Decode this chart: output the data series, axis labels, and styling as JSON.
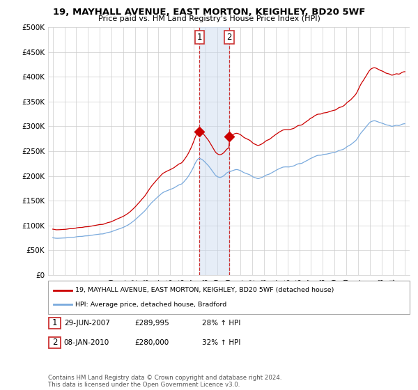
{
  "title": "19, MAYHALL AVENUE, EAST MORTON, KEIGHLEY, BD20 5WF",
  "subtitle": "Price paid vs. HM Land Registry's House Price Index (HPI)",
  "ylim": [
    0,
    500000
  ],
  "yticks": [
    0,
    50000,
    100000,
    150000,
    200000,
    250000,
    300000,
    350000,
    400000,
    450000,
    500000
  ],
  "ytick_labels": [
    "£0",
    "£50K",
    "£100K",
    "£150K",
    "£200K",
    "£250K",
    "£300K",
    "£350K",
    "£400K",
    "£450K",
    "£500K"
  ],
  "xtick_years": [
    1995,
    1996,
    1997,
    1998,
    1999,
    2000,
    2001,
    2002,
    2003,
    2004,
    2005,
    2006,
    2007,
    2008,
    2009,
    2010,
    2011,
    2012,
    2013,
    2014,
    2015,
    2016,
    2017,
    2018,
    2019,
    2020,
    2021,
    2022,
    2023,
    2024,
    2025
  ],
  "red_line_color": "#cc0000",
  "blue_line_color": "#7aaadd",
  "marker1_date": 2007.49,
  "marker1_value": 289995,
  "marker2_date": 2010.03,
  "marker2_value": 280000,
  "shade_color": "#c8d8ee",
  "shade_alpha": 0.45,
  "legend_red_label": "19, MAYHALL AVENUE, EAST MORTON, KEIGHLEY, BD20 5WF (detached house)",
  "legend_blue_label": "HPI: Average price, detached house, Bradford",
  "table_row1": [
    "1",
    "29-JUN-2007",
    "£289,995",
    "28% ↑ HPI"
  ],
  "table_row2": [
    "2",
    "08-JAN-2010",
    "£280,000",
    "32% ↑ HPI"
  ],
  "footer": "Contains HM Land Registry data © Crown copyright and database right 2024.\nThis data is licensed under the Open Government Licence v3.0.",
  "background_color": "#ffffff",
  "grid_color": "#cccccc"
}
